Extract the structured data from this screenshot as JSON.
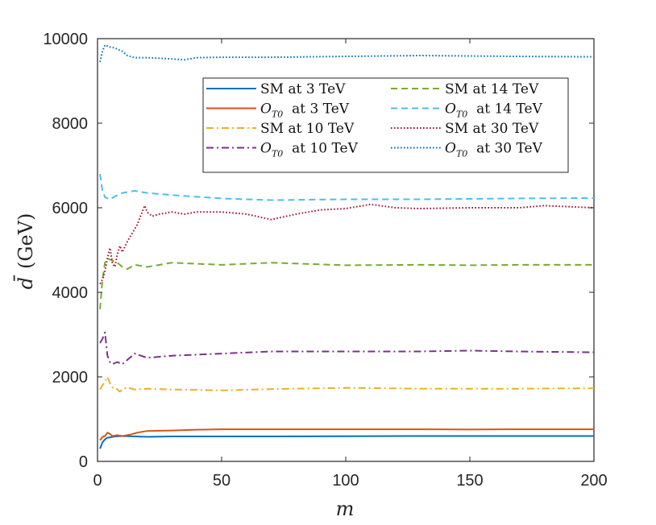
{
  "chart_data": {
    "type": "line",
    "title": "",
    "xlabel": "m",
    "ylabel_symbol": "d̄",
    "ylabel_unit": "(GeV)",
    "xlim": [
      0,
      200
    ],
    "ylim": [
      0,
      10000
    ],
    "xticks": [
      0,
      50,
      100,
      150,
      200
    ],
    "xtick_labels": [
      "0",
      "50",
      "100",
      "150",
      "200"
    ],
    "yticks": [
      0,
      2000,
      4000,
      6000,
      8000,
      10000
    ],
    "ytick_labels": [
      "0",
      "2000",
      "4000",
      "6000",
      "8000",
      "10000"
    ],
    "grid": false,
    "legend_position": "top-right",
    "legend_word": "at",
    "series": [
      {
        "name": "SM at 3 TeV",
        "label_symbol": "SM",
        "label_energy": "3 TeV",
        "color": "#0072BD",
        "dash": "solid",
        "points": [
          [
            1,
            300
          ],
          [
            2,
            450
          ],
          [
            3,
            520
          ],
          [
            4,
            560
          ],
          [
            5,
            570
          ],
          [
            7,
            590
          ],
          [
            10,
            600
          ],
          [
            15,
            590
          ],
          [
            20,
            580
          ],
          [
            30,
            590
          ],
          [
            50,
            590
          ],
          [
            70,
            590
          ],
          [
            100,
            595
          ],
          [
            130,
            600
          ],
          [
            150,
            600
          ],
          [
            170,
            600
          ],
          [
            200,
            600
          ]
        ]
      },
      {
        "name": "O_T0 at 3 TeV",
        "label_symbol": "O",
        "label_sub": "T0",
        "label_energy": "3 TeV",
        "color": "#D95319",
        "dash": "solid",
        "points": [
          [
            1,
            500
          ],
          [
            2,
            580
          ],
          [
            3,
            600
          ],
          [
            4,
            680
          ],
          [
            5,
            650
          ],
          [
            6,
            600
          ],
          [
            8,
            620
          ],
          [
            10,
            600
          ],
          [
            13,
            630
          ],
          [
            16,
            680
          ],
          [
            20,
            720
          ],
          [
            30,
            730
          ],
          [
            40,
            750
          ],
          [
            50,
            760
          ],
          [
            70,
            760
          ],
          [
            100,
            760
          ],
          [
            130,
            760
          ],
          [
            150,
            755
          ],
          [
            170,
            760
          ],
          [
            200,
            760
          ]
        ]
      },
      {
        "name": "SM at 10 TeV",
        "label_symbol": "SM",
        "label_energy": "10 TeV",
        "color": "#EDB120",
        "dash": "dashdot",
        "points": [
          [
            1,
            1700
          ],
          [
            2,
            1800
          ],
          [
            3,
            1900
          ],
          [
            4,
            2000
          ],
          [
            5,
            1850
          ],
          [
            6,
            1750
          ],
          [
            7,
            1750
          ],
          [
            8,
            1700
          ],
          [
            9,
            1650
          ],
          [
            10,
            1700
          ],
          [
            12,
            1750
          ],
          [
            15,
            1700
          ],
          [
            20,
            1720
          ],
          [
            30,
            1700
          ],
          [
            50,
            1680
          ],
          [
            70,
            1710
          ],
          [
            100,
            1740
          ],
          [
            130,
            1720
          ],
          [
            150,
            1720
          ],
          [
            170,
            1720
          ],
          [
            200,
            1730
          ]
        ]
      },
      {
        "name": "O_T0 at 10 TeV",
        "label_symbol": "O",
        "label_sub": "T0",
        "label_energy": "10 TeV",
        "color": "#7E2F8E",
        "dash": "dashdot",
        "points": [
          [
            1,
            2800
          ],
          [
            2,
            2900
          ],
          [
            3,
            3050
          ],
          [
            4,
            2500
          ],
          [
            5,
            2350
          ],
          [
            6,
            2300
          ],
          [
            8,
            2350
          ],
          [
            10,
            2300
          ],
          [
            13,
            2450
          ],
          [
            15,
            2550
          ],
          [
            20,
            2450
          ],
          [
            30,
            2500
          ],
          [
            50,
            2550
          ],
          [
            70,
            2600
          ],
          [
            100,
            2600
          ],
          [
            130,
            2600
          ],
          [
            150,
            2620
          ],
          [
            170,
            2600
          ],
          [
            200,
            2580
          ]
        ]
      },
      {
        "name": "SM at 14 TeV",
        "label_symbol": "SM",
        "label_energy": "14 TeV",
        "color": "#77AC30",
        "dash": "dashed",
        "points": [
          [
            1,
            3600
          ],
          [
            2,
            4300
          ],
          [
            3,
            4700
          ],
          [
            4,
            4800
          ],
          [
            6,
            4750
          ],
          [
            8,
            4700
          ],
          [
            10,
            4600
          ],
          [
            12,
            4550
          ],
          [
            15,
            4650
          ],
          [
            20,
            4600
          ],
          [
            30,
            4700
          ],
          [
            50,
            4650
          ],
          [
            70,
            4700
          ],
          [
            100,
            4640
          ],
          [
            130,
            4650
          ],
          [
            150,
            4640
          ],
          [
            170,
            4650
          ],
          [
            200,
            4650
          ]
        ]
      },
      {
        "name": "O_T0 at 14 TeV",
        "label_symbol": "O",
        "label_sub": "T0",
        "label_energy": "14 TeV",
        "color": "#4DBEEE",
        "dash": "dashed",
        "points": [
          [
            1,
            6800
          ],
          [
            2,
            6400
          ],
          [
            3,
            6250
          ],
          [
            5,
            6200
          ],
          [
            8,
            6300
          ],
          [
            10,
            6350
          ],
          [
            15,
            6400
          ],
          [
            20,
            6350
          ],
          [
            30,
            6300
          ],
          [
            50,
            6220
          ],
          [
            70,
            6180
          ],
          [
            100,
            6200
          ],
          [
            130,
            6200
          ],
          [
            150,
            6210
          ],
          [
            170,
            6220
          ],
          [
            200,
            6230
          ]
        ]
      },
      {
        "name": "SM at 30 TeV",
        "label_symbol": "SM",
        "label_energy": "30 TeV",
        "color": "#A2142F",
        "dash": "dotted",
        "points": [
          [
            1,
            4200
          ],
          [
            2,
            4300
          ],
          [
            3,
            4500
          ],
          [
            4,
            4800
          ],
          [
            5,
            5050
          ],
          [
            6,
            4700
          ],
          [
            7,
            4600
          ],
          [
            8,
            4900
          ],
          [
            9,
            5100
          ],
          [
            10,
            4950
          ],
          [
            12,
            5200
          ],
          [
            14,
            5400
          ],
          [
            16,
            5600
          ],
          [
            18,
            5900
          ],
          [
            19,
            6050
          ],
          [
            20,
            5900
          ],
          [
            22,
            5800
          ],
          [
            25,
            5850
          ],
          [
            30,
            5900
          ],
          [
            35,
            5850
          ],
          [
            40,
            5900
          ],
          [
            50,
            5900
          ],
          [
            60,
            5850
          ],
          [
            70,
            5720
          ],
          [
            80,
            5850
          ],
          [
            90,
            5950
          ],
          [
            100,
            5980
          ],
          [
            110,
            6080
          ],
          [
            120,
            6000
          ],
          [
            130,
            5980
          ],
          [
            150,
            6000
          ],
          [
            170,
            6000
          ],
          [
            180,
            6050
          ],
          [
            200,
            6000
          ]
        ]
      },
      {
        "name": "O_T0 at 30 TeV",
        "label_symbol": "O",
        "label_sub": "T0",
        "label_energy": "30 TeV",
        "color": "#0072BD",
        "dash": "dotted",
        "points": [
          [
            1,
            9450
          ],
          [
            2,
            9700
          ],
          [
            3,
            9850
          ],
          [
            5,
            9800
          ],
          [
            7,
            9780
          ],
          [
            8,
            9750
          ],
          [
            10,
            9700
          ],
          [
            12,
            9600
          ],
          [
            15,
            9550
          ],
          [
            20,
            9550
          ],
          [
            30,
            9520
          ],
          [
            35,
            9500
          ],
          [
            40,
            9550
          ],
          [
            50,
            9560
          ],
          [
            70,
            9560
          ],
          [
            100,
            9580
          ],
          [
            130,
            9600
          ],
          [
            150,
            9590
          ],
          [
            170,
            9580
          ],
          [
            200,
            9570
          ]
        ]
      }
    ]
  }
}
